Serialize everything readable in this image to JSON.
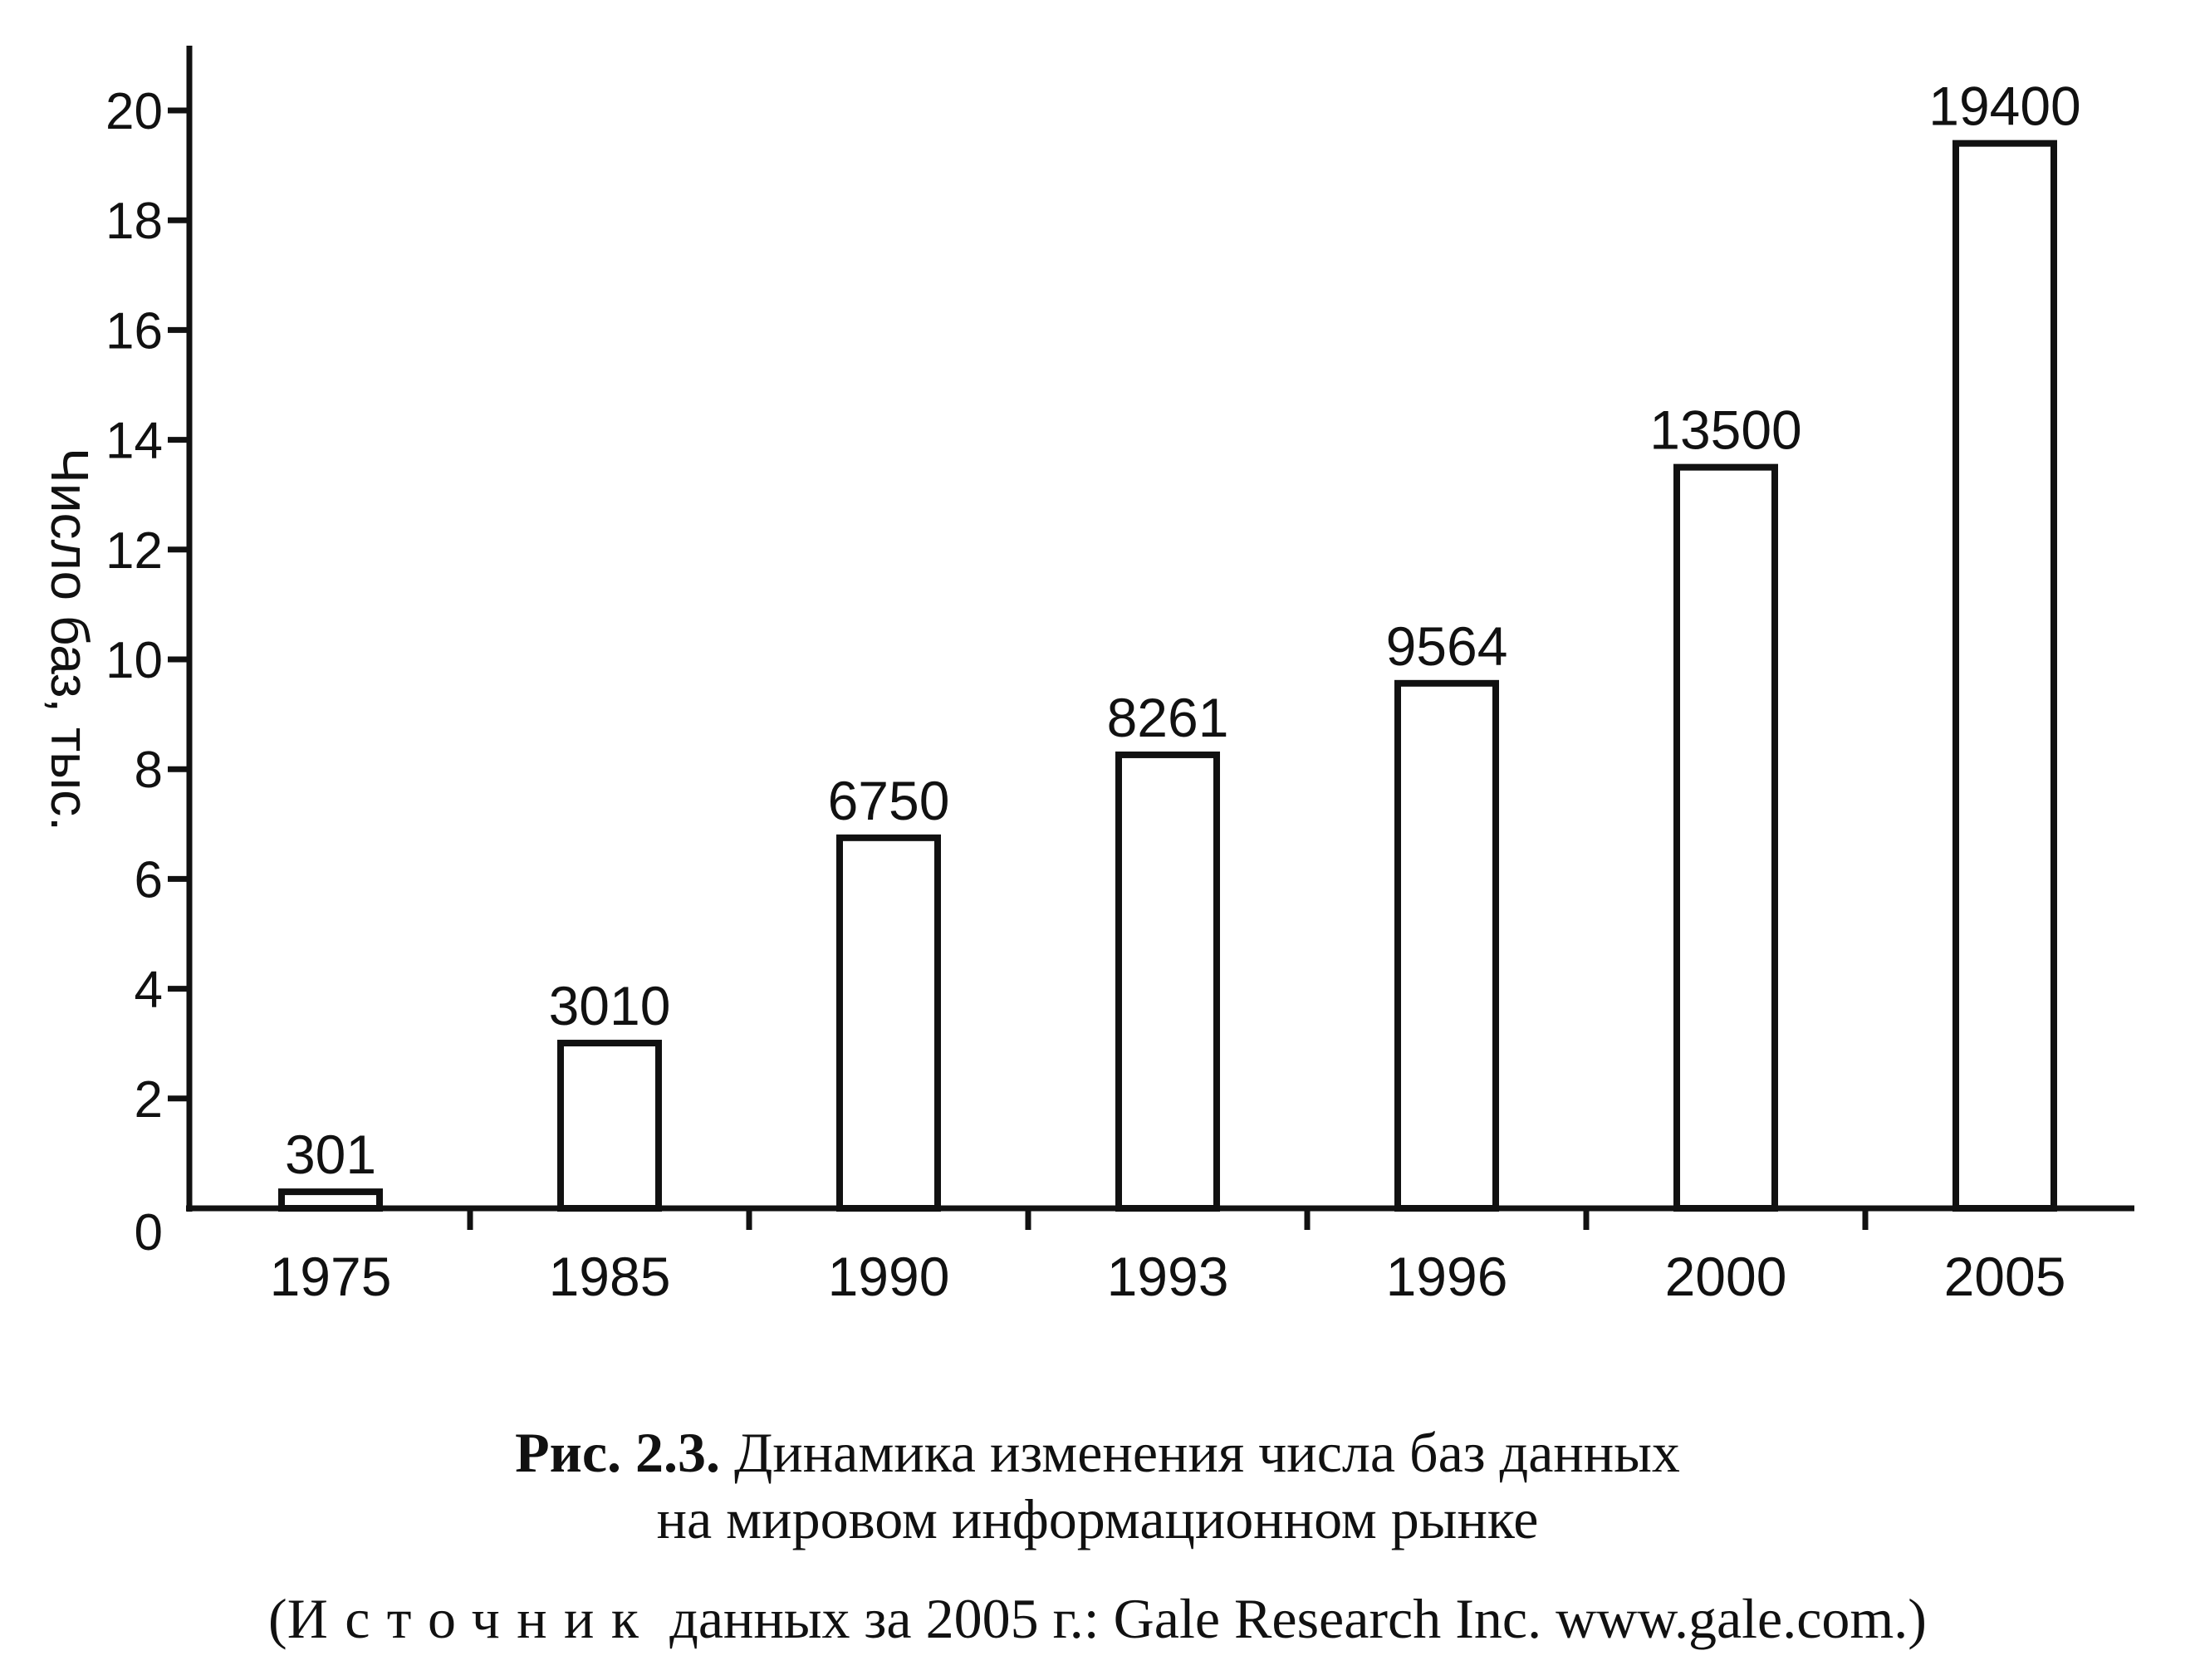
{
  "chart_data": {
    "type": "bar",
    "ylabel": "Число баз, тыс.",
    "categories": [
      "1975",
      "1985",
      "1990",
      "1993",
      "1996",
      "2000",
      "2005"
    ],
    "values": [
      301,
      3010,
      6750,
      8261,
      9564,
      13500,
      19400
    ],
    "data_labels": [
      "301",
      "3010",
      "6750",
      "8261",
      "9564",
      "13500",
      "19400"
    ],
    "y_ticks": [
      0,
      2,
      4,
      6,
      8,
      10,
      12,
      14,
      16,
      18,
      20
    ],
    "y_tick_labels": [
      "0",
      "2",
      "4",
      "6",
      "8",
      "10",
      "12",
      "14",
      "16",
      "18",
      "20"
    ],
    "ylim": [
      0,
      21
    ],
    "y_unit_scale": 1000,
    "grid": false,
    "legend": "none"
  },
  "caption": {
    "figure_number": "Рис. 2.3.",
    "title_line1": "Динамика изменения числа баз данных",
    "title_line2": "на мировом информационном рынке",
    "source_open": "(",
    "source_word": "Источник",
    "source_rest": "данных за 2005 г.: Gale Research Inc. www.gale.com.)"
  }
}
